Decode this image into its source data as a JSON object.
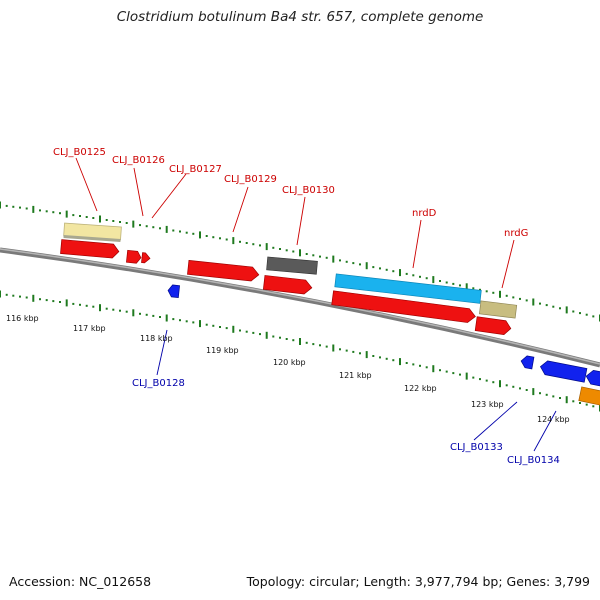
{
  "title": "Clostridium botulinum Ba4 str. 657, complete genome",
  "footer": {
    "accession": "Accession: NC_012658",
    "topology": "Topology: circular; Length: 3,977,794 bp; Genes: 3,799"
  },
  "colors": {
    "red": "#ee1111",
    "blue": "#1122ee",
    "cyan": "#1ab2ee",
    "khaki": "#c8bd80",
    "pale_yellow": "#f2e6a2",
    "dark_gray": "#555555",
    "orange": "#ee8a00",
    "tick_green": "#1f7a1f",
    "backbone": "#8c8c8c",
    "label_red": "#cc0000",
    "label_blue": "#0000aa"
  },
  "scale_labels": [
    "116 kbp",
    "117 kbp",
    "118 kbp",
    "119 kbp",
    "120 kbp",
    "121 kbp",
    "122 kbp",
    "123 kbp",
    "124 kbp"
  ],
  "gene_labels": [
    {
      "text": "CLJ_B0125",
      "color": "red"
    },
    {
      "text": "CLJ_B0126",
      "color": "red"
    },
    {
      "text": "CLJ_B0127",
      "color": "red"
    },
    {
      "text": "CLJ_B0129",
      "color": "red"
    },
    {
      "text": "CLJ_B0130",
      "color": "red"
    },
    {
      "text": "nrdD",
      "color": "red"
    },
    {
      "text": "nrdG",
      "color": "red"
    },
    {
      "text": "CLJ_B0128",
      "color": "blue"
    },
    {
      "text": "CLJ_B0133",
      "color": "blue"
    },
    {
      "text": "CLJ_B0134",
      "color": "blue"
    }
  ],
  "features": [
    {
      "id": "f-0125-cog",
      "color": "pale_yellow"
    },
    {
      "id": "f-0125",
      "color": "red"
    },
    {
      "id": "f-0126",
      "color": "red"
    },
    {
      "id": "f-0127",
      "color": "red"
    },
    {
      "id": "f-0129",
      "color": "red"
    },
    {
      "id": "f-0130-cog",
      "color": "dark_gray"
    },
    {
      "id": "f-0130",
      "color": "red"
    },
    {
      "id": "f-nrdD-cog",
      "color": "cyan"
    },
    {
      "id": "f-nrdD",
      "color": "red"
    },
    {
      "id": "f-nrdG-cog",
      "color": "khaki"
    },
    {
      "id": "f-nrdG",
      "color": "red"
    },
    {
      "id": "f-0128",
      "color": "blue"
    },
    {
      "id": "f-0133",
      "color": "blue"
    },
    {
      "id": "f-0134",
      "color": "blue"
    },
    {
      "id": "f-0135-cog",
      "color": "orange"
    }
  ]
}
